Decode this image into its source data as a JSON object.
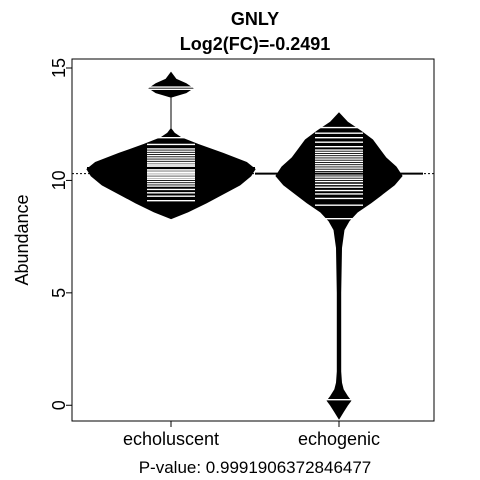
{
  "chart_data": {
    "type": "beanplot",
    "title": "GNLY",
    "subtitle": "Log2(FC)=-0.2491",
    "ylabel": "Abundance",
    "xlabel": "P-value: 0.9991906372846477",
    "ylim": [
      -0.7,
      15.4
    ],
    "yticks": [
      0,
      5,
      10,
      15
    ],
    "overall_mean": 10.3,
    "categories": [
      "echoluscent",
      "echogenic"
    ],
    "groups": [
      {
        "name": "echoluscent",
        "mean": 10.55,
        "density_y": [
          8.3,
          8.6,
          9.0,
          9.4,
          9.8,
          10.2,
          10.5,
          10.8,
          11.2,
          11.6,
          11.9,
          12.1,
          12.3,
          13.7,
          13.9,
          14.1,
          14.3,
          14.5,
          14.8
        ],
        "density_w": [
          0,
          0.2,
          0.42,
          0.62,
          0.82,
          0.95,
          1.0,
          0.9,
          0.62,
          0.32,
          0.12,
          0.04,
          0,
          0,
          0.18,
          0.26,
          0.18,
          0.06,
          0
        ],
        "observations": [
          9.1,
          9.3,
          9.45,
          9.6,
          9.75,
          9.85,
          9.95,
          10.05,
          10.12,
          10.2,
          10.28,
          10.35,
          10.42,
          10.5,
          10.58,
          10.65,
          10.72,
          10.8,
          10.9,
          11.0,
          11.1,
          11.2,
          11.3,
          11.4,
          11.6,
          11.9,
          14.05,
          14.15
        ]
      },
      {
        "name": "echogenic",
        "mean": 10.3,
        "density_y": [
          -0.6,
          -0.3,
          0.0,
          0.2,
          0.4,
          0.7,
          1.0,
          1.5,
          3.0,
          5.0,
          7.0,
          7.8,
          8.2,
          8.6,
          9.0,
          9.4,
          9.8,
          10.2,
          10.6,
          11.0,
          11.4,
          11.8,
          12.2,
          12.6,
          13.0
        ],
        "density_w": [
          0,
          0.05,
          0.1,
          0.14,
          0.1,
          0.05,
          0.03,
          0.02,
          0.02,
          0.02,
          0.03,
          0.06,
          0.12,
          0.22,
          0.38,
          0.52,
          0.66,
          0.75,
          0.68,
          0.56,
          0.48,
          0.4,
          0.26,
          0.1,
          0
        ],
        "observations": [
          0.25,
          8.3,
          8.9,
          9.2,
          9.4,
          9.55,
          9.7,
          9.82,
          9.95,
          10.05,
          10.15,
          10.25,
          10.35,
          10.45,
          10.55,
          10.65,
          10.75,
          10.85,
          10.95,
          11.05,
          11.15,
          11.25,
          11.35,
          11.5,
          11.7,
          11.9,
          12.1,
          12.35
        ]
      }
    ]
  }
}
